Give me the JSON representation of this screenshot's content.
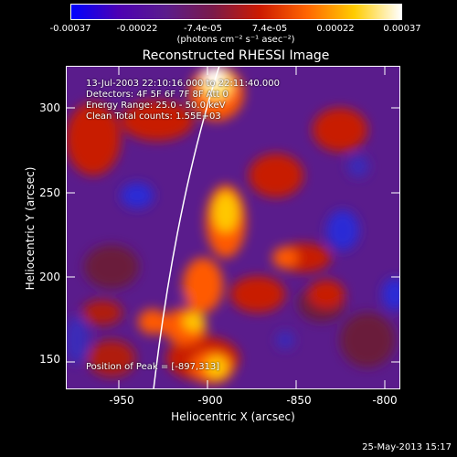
{
  "colorbar": {
    "tick_labels": [
      "-0.00037",
      "-0.00022",
      "-7.4e-05",
      "7.4e-05",
      "0.00022",
      "0.00037"
    ],
    "units": "(photons cm⁻² s⁻¹ asec⁻²)",
    "colors": [
      "#0000ff",
      "#4d00b3",
      "#5a1c8c",
      "#7a1a4a",
      "#cc1a00",
      "#ff6600",
      "#ffcc00",
      "#ffffff"
    ]
  },
  "title": "Reconstructed RHESSI Image",
  "info": {
    "time_range": "13-Jul-2003 22:10:16.000 to 22:11:40.000",
    "detectors": "Detectors: 4F 5F 6F 7F 8F  Att 0",
    "energy_range": "Energy Range: 25.0 - 50.0 keV",
    "clean_counts": "Clean    Total counts: 1.55E+03",
    "peak": "Position of Peak = [-897,313]"
  },
  "axes": {
    "xlabel": "Heliocentric X (arcsec)",
    "ylabel": "Heliocentric Y (arcsec)",
    "x_ticks": [
      "-950",
      "-900",
      "-850",
      "-800"
    ],
    "y_ticks": [
      "300",
      "250",
      "200",
      "150"
    ],
    "x_range": [
      -983,
      -795
    ],
    "y_range": [
      133,
      324
    ]
  },
  "footer": {
    "date": "25-May-2013 15:17"
  }
}
